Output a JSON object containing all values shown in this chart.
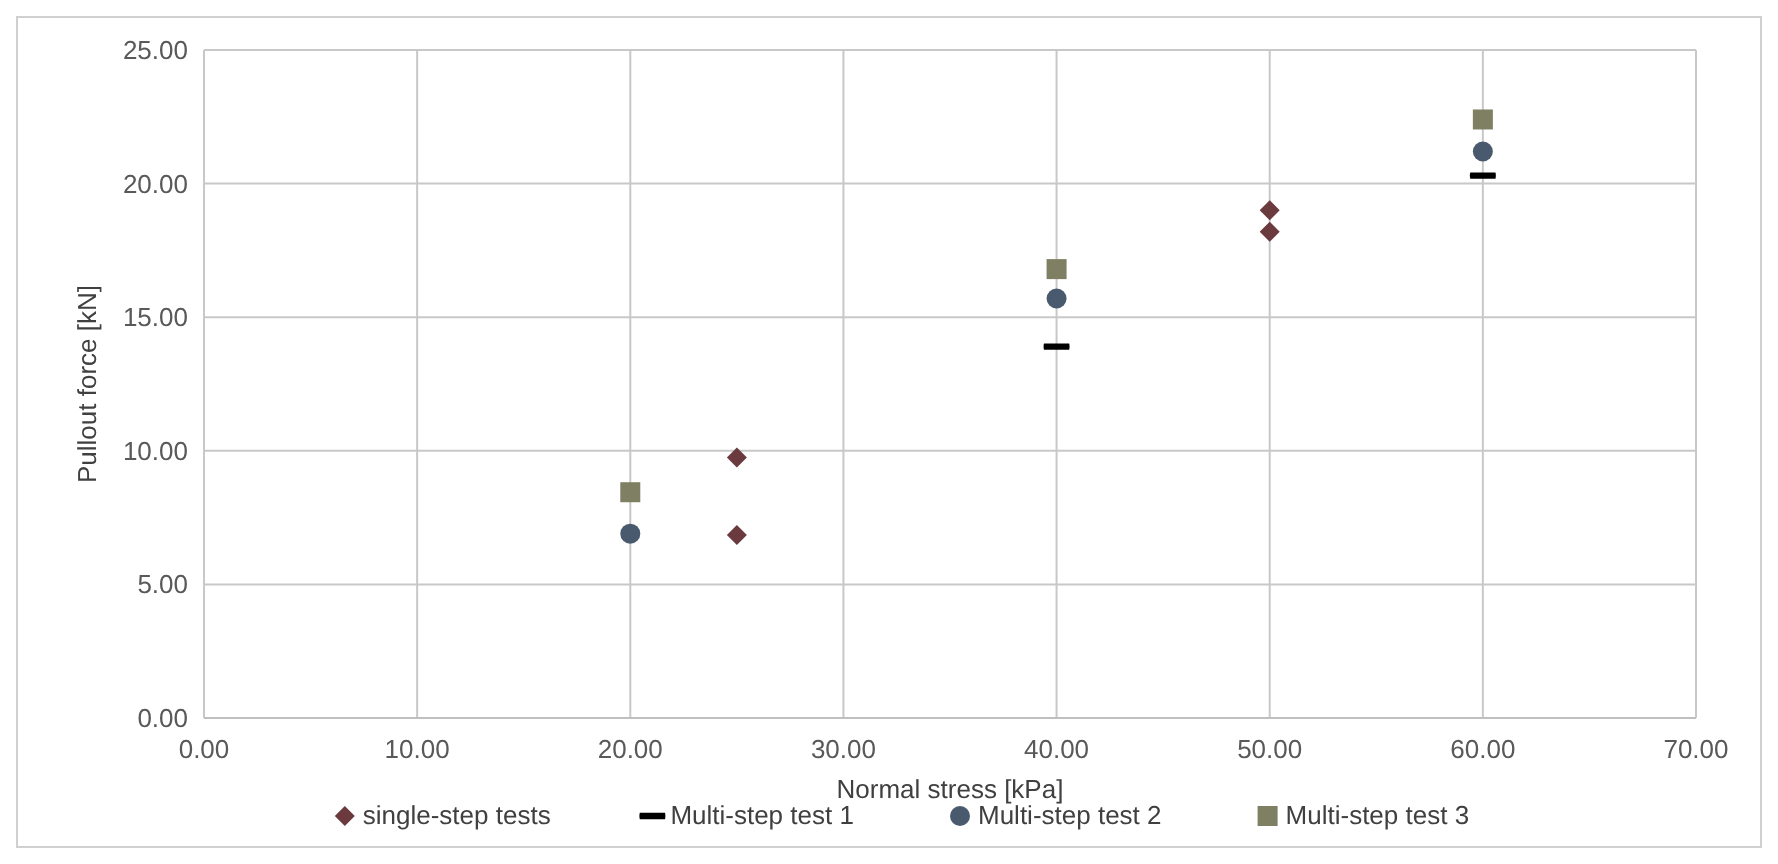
{
  "chart_data": {
    "type": "scatter",
    "xlabel": "Normal stress [kPa]",
    "ylabel": "Pullout force [kN]",
    "xlim": [
      0,
      70
    ],
    "xticks": [
      {
        "value": 0,
        "label": "0.00"
      },
      {
        "value": 10,
        "label": "10.00"
      },
      {
        "value": 20,
        "label": "20.00"
      },
      {
        "value": 30,
        "label": "30.00"
      },
      {
        "value": 40,
        "label": "40.00"
      },
      {
        "value": 50,
        "label": "50.00"
      },
      {
        "value": 60,
        "label": "60.00"
      },
      {
        "value": 70,
        "label": "70.00"
      }
    ],
    "ylim": [
      0,
      25
    ],
    "yticks": [
      {
        "value": 0,
        "label": "0.00"
      },
      {
        "value": 5,
        "label": "5.00"
      },
      {
        "value": 10,
        "label": "10.00"
      },
      {
        "value": 15,
        "label": "15.00"
      },
      {
        "value": 20,
        "label": "20.00"
      },
      {
        "value": 25,
        "label": "25.00"
      }
    ],
    "grid": true,
    "legend": "bottom",
    "series": [
      {
        "name": "single-step tests",
        "color": "#6b3a3e",
        "marker": "diamond",
        "x": [
          25,
          25,
          50,
          50
        ],
        "values": [
          9.75,
          6.85,
          19.0,
          18.2
        ]
      },
      {
        "name": "Multi-step test 1",
        "color": "#000000",
        "x": [
          40,
          60
        ],
        "values": [
          13.9,
          20.3
        ]
      },
      {
        "name": "Multi-step test 2",
        "color": "#4a5a6e",
        "marker": "circle",
        "x": [
          20,
          40,
          60
        ],
        "values": [
          6.9,
          15.7,
          21.2
        ]
      },
      {
        "name": "Multi-step test 3",
        "color": "#7f7f63",
        "marker": "square",
        "x": [
          20,
          40,
          60
        ],
        "values": [
          8.45,
          16.8,
          22.4
        ]
      }
    ]
  }
}
